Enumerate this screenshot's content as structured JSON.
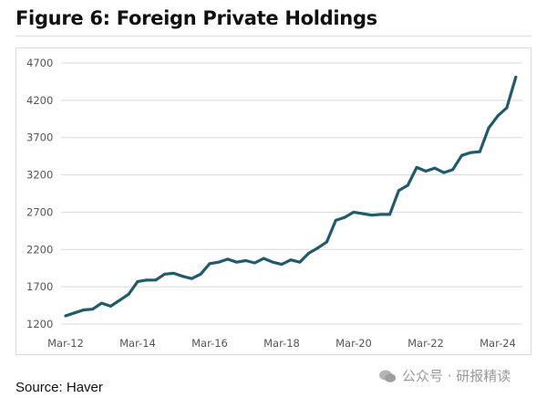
{
  "title": "Figure 6: Foreign Private Holdings",
  "source": "Source: Haver",
  "watermark": "公众号 · 研报精读",
  "chart_data": {
    "type": "line",
    "title": "Figure 6: Foreign Private Holdings",
    "xlabel": "",
    "ylabel": "",
    "ylim": [
      1200,
      4700
    ],
    "yticks": [
      "1200",
      "1700",
      "2200",
      "2700",
      "3200",
      "3700",
      "4200",
      "4700"
    ],
    "xtick_labels": [
      "Mar-12",
      "Mar-14",
      "Mar-16",
      "Mar-18",
      "Mar-20",
      "Mar-22",
      "Mar-24"
    ],
    "grid": "horizontal",
    "line_color": "#1f5a6e",
    "x": [
      "Mar-12",
      "Jun-12",
      "Sep-12",
      "Dec-12",
      "Mar-13",
      "Jun-13",
      "Sep-13",
      "Dec-13",
      "Mar-14",
      "Jun-14",
      "Sep-14",
      "Dec-14",
      "Mar-15",
      "Jun-15",
      "Sep-15",
      "Dec-15",
      "Mar-16",
      "Jun-16",
      "Sep-16",
      "Dec-16",
      "Mar-17",
      "Jun-17",
      "Sep-17",
      "Dec-17",
      "Mar-18",
      "Jun-18",
      "Sep-18",
      "Dec-18",
      "Mar-19",
      "Jun-19",
      "Sep-19",
      "Dec-19",
      "Mar-20",
      "Jun-20",
      "Sep-20",
      "Dec-20",
      "Mar-21",
      "Jun-21",
      "Sep-21",
      "Dec-21",
      "Mar-22",
      "Jun-22",
      "Sep-22",
      "Dec-22",
      "Mar-23",
      "Jun-23",
      "Sep-23",
      "Dec-23",
      "Mar-24",
      "Jun-24",
      "Sep-24"
    ],
    "series": [
      {
        "values": [
          1310,
          1350,
          1390,
          1400,
          1480,
          1440,
          1520,
          1600,
          1770,
          1790,
          1790,
          1870,
          1880,
          1840,
          1810,
          1870,
          2010,
          2030,
          2070,
          2030,
          2050,
          2020,
          2080,
          2030,
          2000,
          2060,
          2030,
          2150,
          2220,
          2300,
          2590,
          2630,
          2700,
          2680,
          2660,
          2670,
          2670,
          2990,
          3060,
          3300,
          3250,
          3290,
          3230,
          3270,
          3460,
          3500,
          3510,
          3830,
          3990,
          4100,
          4510
        ]
      }
    ]
  }
}
